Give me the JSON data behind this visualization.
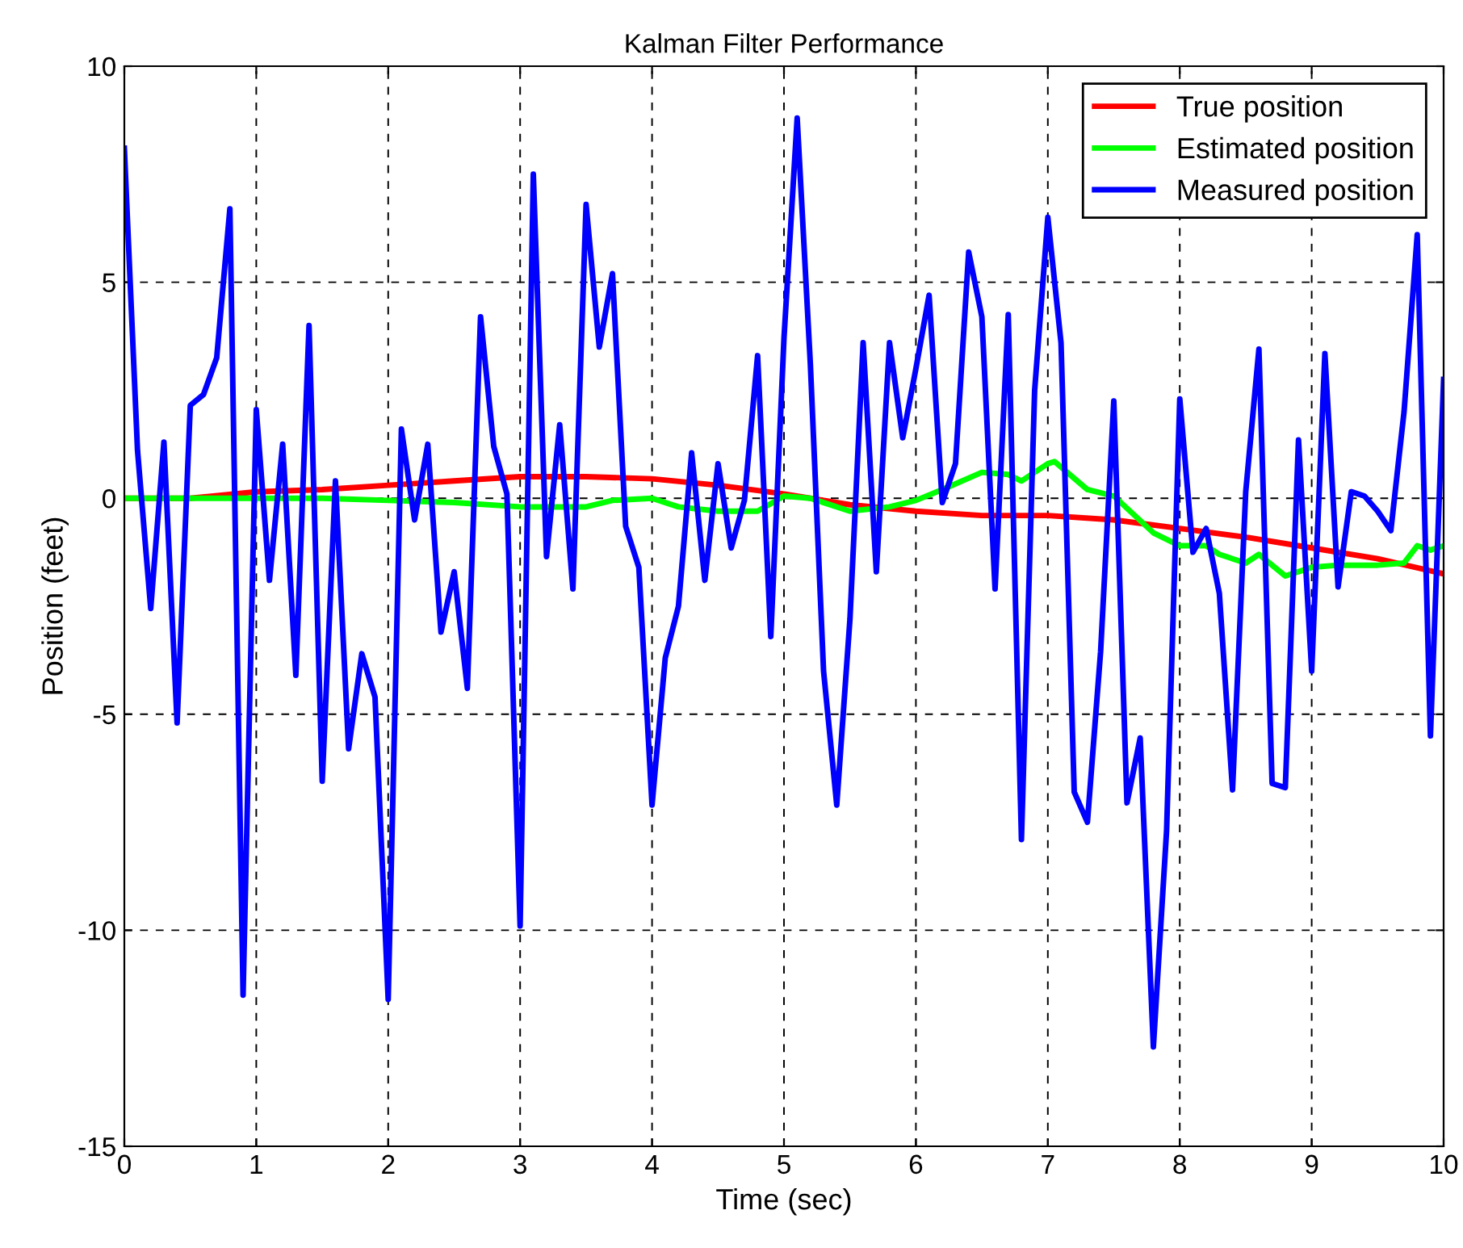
{
  "chart_data": {
    "type": "line",
    "title": "Kalman Filter Performance",
    "xlabel": "Time (sec)",
    "ylabel": "Position (feet)",
    "xlim": [
      0,
      10
    ],
    "ylim": [
      -15,
      10
    ],
    "xticks": [
      0,
      1,
      2,
      3,
      4,
      5,
      6,
      7,
      8,
      9,
      10
    ],
    "yticks": [
      -15,
      -10,
      -5,
      0,
      5,
      10
    ],
    "grid": true,
    "legend": "top right",
    "line_style": "solid",
    "marker": "none",
    "series": [
      {
        "name": "True position",
        "color": "#ff0000",
        "x": [
          0,
          0.5,
          1,
          1.5,
          2,
          2.5,
          3,
          3.5,
          4,
          4.5,
          5,
          5.5,
          6,
          6.5,
          7,
          7.5,
          8,
          8.5,
          9,
          9.5,
          10
        ],
        "values": [
          0,
          0,
          0.15,
          0.2,
          0.3,
          0.4,
          0.5,
          0.5,
          0.45,
          0.3,
          0.1,
          -0.15,
          -0.3,
          -0.4,
          -0.4,
          -0.5,
          -0.7,
          -0.9,
          -1.15,
          -1.4,
          -1.75
        ]
      },
      {
        "name": "Estimated position",
        "color": "#00ff00",
        "x": [
          0,
          0.5,
          1,
          1.5,
          2,
          2.5,
          3,
          3.5,
          3.7,
          4,
          4.2,
          4.5,
          4.8,
          5,
          5.2,
          5.5,
          5.8,
          6,
          6.2,
          6.5,
          6.7,
          6.8,
          7,
          7.05,
          7.3,
          7.5,
          7.8,
          8,
          8.2,
          8.3,
          8.5,
          8.6,
          8.8,
          9,
          9.2,
          9.5,
          9.7,
          9.8,
          9.9,
          10
        ],
        "values": [
          0,
          0,
          0,
          0,
          -0.05,
          -0.1,
          -0.2,
          -0.2,
          -0.05,
          0,
          -0.2,
          -0.3,
          -0.3,
          0.05,
          0,
          -0.3,
          -0.2,
          -0.05,
          0.2,
          0.6,
          0.55,
          0.4,
          0.8,
          0.85,
          0.2,
          0.05,
          -0.8,
          -1.1,
          -1.1,
          -1.3,
          -1.5,
          -1.3,
          -1.8,
          -1.6,
          -1.55,
          -1.55,
          -1.5,
          -1.1,
          -1.2,
          -1.1
        ]
      },
      {
        "name": "Measured position",
        "color": "#0000ff",
        "x": [
          0,
          0.1,
          0.2,
          0.3,
          0.4,
          0.5,
          0.6,
          0.7,
          0.8,
          0.9,
          1,
          1.1,
          1.2,
          1.3,
          1.4,
          1.5,
          1.6,
          1.7,
          1.8,
          1.9,
          2,
          2.1,
          2.2,
          2.3,
          2.4,
          2.5,
          2.6,
          2.7,
          2.8,
          2.9,
          3,
          3.1,
          3.2,
          3.3,
          3.4,
          3.5,
          3.6,
          3.7,
          3.8,
          3.9,
          4,
          4.1,
          4.2,
          4.3,
          4.4,
          4.5,
          4.6,
          4.7,
          4.8,
          4.9,
          5,
          5.1,
          5.2,
          5.3,
          5.4,
          5.5,
          5.6,
          5.7,
          5.8,
          5.9,
          6,
          6.1,
          6.2,
          6.3,
          6.4,
          6.5,
          6.6,
          6.7,
          6.8,
          6.9,
          7,
          7.1,
          7.2,
          7.3,
          7.4,
          7.5,
          7.6,
          7.7,
          7.8,
          7.9,
          8,
          8.1,
          8.2,
          8.3,
          8.4,
          8.5,
          8.6,
          8.7,
          8.8,
          8.9,
          9,
          9.1,
          9.2,
          9.3,
          9.4,
          9.5,
          9.6,
          9.7,
          9.8,
          9.9,
          10
        ],
        "values": [
          8.1,
          1.1,
          -2.55,
          1.3,
          -5.2,
          2.15,
          2.4,
          3.25,
          6.7,
          -11.5,
          2.05,
          -1.9,
          1.25,
          -4.1,
          4.0,
          -6.55,
          0.4,
          -5.8,
          -3.6,
          -4.6,
          -11.6,
          1.6,
          -0.5,
          1.25,
          -3.1,
          -1.7,
          -4.4,
          4.2,
          1.2,
          0.1,
          -9.9,
          7.5,
          -1.35,
          1.7,
          -2.1,
          6.8,
          3.5,
          5.2,
          -0.65,
          -1.6,
          -7.1,
          -3.7,
          -2.5,
          1.05,
          -1.9,
          0.8,
          -1.15,
          -0.05,
          3.3,
          -3.2,
          3.7,
          8.8,
          3.1,
          -4.0,
          -7.1,
          -2.8,
          3.6,
          -1.7,
          3.6,
          1.4,
          3.0,
          4.7,
          -0.1,
          0.8,
          5.7,
          4.2,
          -2.1,
          4.25,
          -7.9,
          2.5,
          6.5,
          3.6,
          -6.8,
          -7.5,
          -3.55,
          2.25,
          -7.05,
          -5.55,
          -12.7,
          -7.7,
          2.3,
          -1.25,
          -0.7,
          -2.2,
          -6.75,
          0.15,
          3.45,
          -6.6,
          -6.7,
          1.35,
          -4.0,
          3.35,
          -2.05,
          0.15,
          0.05,
          -0.3,
          -0.75,
          2.0,
          6.1,
          -5.5,
          2.75
        ]
      }
    ]
  }
}
